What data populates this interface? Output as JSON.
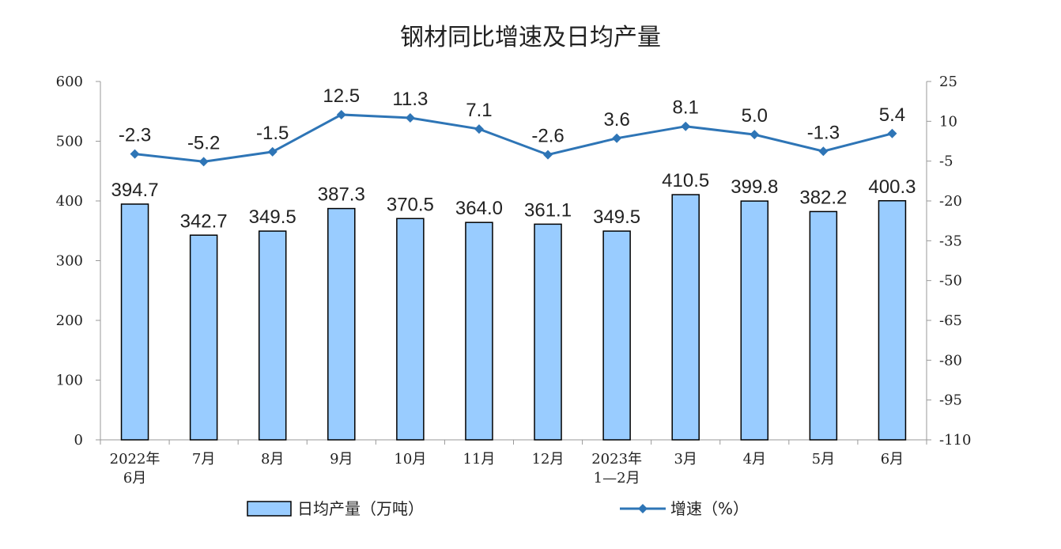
{
  "chart_data": {
    "type": "bar+line",
    "title": "钢材同比增速及日均产量",
    "categories": [
      [
        "2022年",
        "6月"
      ],
      [
        "7月"
      ],
      [
        "8月"
      ],
      [
        "9月"
      ],
      [
        "10月"
      ],
      [
        "11月"
      ],
      [
        "12月"
      ],
      [
        "2023年",
        "1—2月"
      ],
      [
        "3月"
      ],
      [
        "4月"
      ],
      [
        "5月"
      ],
      [
        "6月"
      ]
    ],
    "bar_series": {
      "name": "日均产量（万吨）",
      "values": [
        394.7,
        342.7,
        349.5,
        387.3,
        370.5,
        364.0,
        361.1,
        349.5,
        410.5,
        399.8,
        382.2,
        400.3
      ],
      "labels": [
        "394.7",
        "342.7",
        "349.5",
        "387.3",
        "370.5",
        "364.0",
        "361.1",
        "349.5",
        "410.5",
        "399.8",
        "382.2",
        "400.3"
      ],
      "axis": "left",
      "color": "#99CCFF",
      "border_color": "#000000"
    },
    "line_series": {
      "name": "增速（%）",
      "values": [
        -2.3,
        -5.2,
        -1.5,
        12.5,
        11.3,
        7.1,
        -2.6,
        3.6,
        8.1,
        5.0,
        -1.3,
        5.4
      ],
      "labels": [
        "-2.3",
        "-5.2",
        "-1.5",
        "12.5",
        "11.3",
        "7.1",
        "-2.6",
        "3.6",
        "8.1",
        "5.0",
        "-1.3",
        "5.4"
      ],
      "axis": "right",
      "color": "#2E75B6",
      "marker": "diamond"
    },
    "left_axis": {
      "ylim": [
        0,
        600
      ],
      "ticks": [
        "0",
        "100",
        "200",
        "300",
        "400",
        "500",
        "600"
      ]
    },
    "right_axis": {
      "ylim": [
        -110,
        25
      ],
      "ticks": [
        "25",
        "10",
        "-5",
        "-20",
        "-35",
        "-50",
        "-65",
        "-80",
        "-95",
        "-110"
      ],
      "tick_values": [
        25,
        10,
        -5,
        -20,
        -35,
        -50,
        -65,
        -80,
        -95,
        -110
      ]
    },
    "grid": false,
    "legend_position": "bottom"
  }
}
